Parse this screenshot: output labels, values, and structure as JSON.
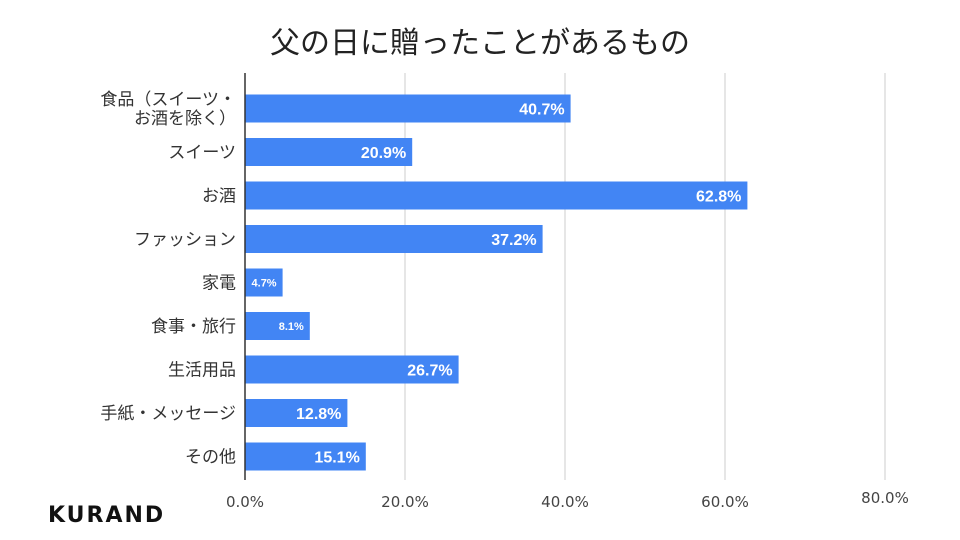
{
  "chart_data": {
    "type": "bar",
    "orientation": "horizontal",
    "title": "父の日に贈ったことがあるもの",
    "categories": [
      [
        "食品（スイーツ・",
        "お酒を除く）"
      ],
      [
        "スイーツ"
      ],
      [
        "お酒"
      ],
      [
        "ファッション"
      ],
      [
        "家電"
      ],
      [
        "食事・旅行"
      ],
      [
        "生活用品"
      ],
      [
        "手紙・メッセージ"
      ],
      [
        "その他"
      ]
    ],
    "values": [
      40.7,
      20.9,
      62.8,
      37.2,
      4.7,
      8.1,
      26.7,
      12.8,
      15.1
    ],
    "value_labels": [
      "40.7%",
      "20.9%",
      "62.8%",
      "37.2%",
      "4.7%",
      "8.1%",
      "26.7%",
      "12.8%",
      "15.1%"
    ],
    "xlim": [
      0,
      80
    ],
    "x_ticks": [
      0,
      20,
      40,
      60,
      80
    ],
    "x_tick_labels": [
      "0.0%",
      "20.0%",
      "40.0%",
      "60.0%",
      "80.0%"
    ],
    "grid": true,
    "bar_color": "#4285f4",
    "legend": "none"
  },
  "brand": {
    "logo_text": "KURAND"
  }
}
